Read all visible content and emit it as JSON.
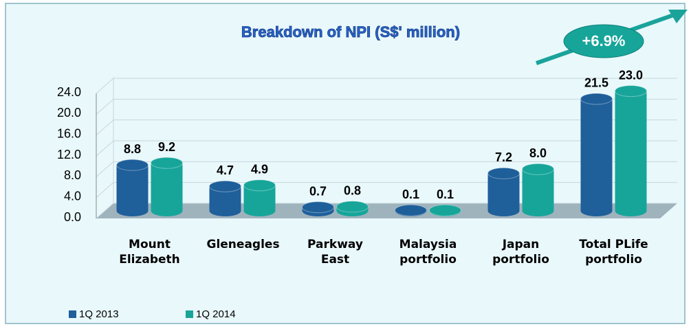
{
  "chart_data": {
    "type": "bar",
    "title": "Breakdown of NPI (S$' million)",
    "annotation": "+6.9%",
    "categories": [
      "Mount Elizabeth",
      "Gleneagles",
      "Parkway East",
      "Malaysia portfolio",
      "Japan portfolio",
      "Total PLife portfolio"
    ],
    "series": [
      {
        "name": "1Q 2013",
        "color": "#1f5f9a",
        "values": [
          8.8,
          4.7,
          0.7,
          0.1,
          7.2,
          21.5
        ],
        "value_labels": [
          "8.8",
          "4.7",
          "0.7",
          "0.1",
          "7.2",
          "21.5"
        ]
      },
      {
        "name": "1Q 2014",
        "color": "#17a59a",
        "values": [
          9.2,
          4.9,
          0.8,
          0.1,
          8.0,
          23.0
        ],
        "value_labels": [
          "9.2",
          "4.9",
          "0.8",
          "0.1",
          "8.0",
          "23.0"
        ]
      }
    ],
    "ylim": [
      0,
      24
    ],
    "yticks": [
      {
        "value": 0,
        "label": "0.0"
      },
      {
        "value": 4,
        "label": "4.0"
      },
      {
        "value": 8,
        "label": "8.0"
      },
      {
        "value": 12,
        "label": "12.0"
      },
      {
        "value": 16,
        "label": "16.0"
      },
      {
        "value": 20,
        "label": "20.0"
      },
      {
        "value": 24,
        "label": "24.0"
      }
    ],
    "grid": true
  }
}
